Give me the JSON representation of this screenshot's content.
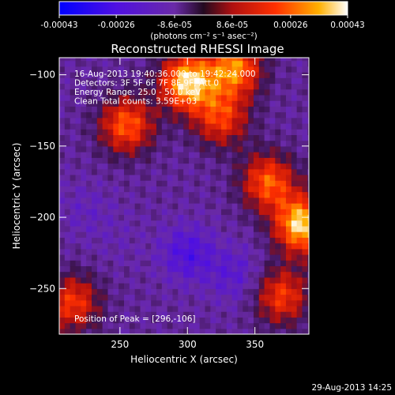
{
  "colorbar": {
    "tick_labels": [
      "-0.00043",
      "-0.00026",
      "-8.6e-05",
      "8.6e-05",
      "0.00026",
      "0.00043"
    ],
    "units_label": "(photons cm⁻² s⁻¹ asec⁻²)",
    "range": [
      -0.00043,
      0.00043
    ]
  },
  "chart_data": {
    "type": "heatmap",
    "title": "Reconstructed RHESSI Image",
    "xlabel": "Heliocentric X (arcsec)",
    "ylabel": "Heliocentric Y (arcsec)",
    "xlim": [
      205,
      390
    ],
    "ylim": [
      -282,
      -88
    ],
    "x_ticks": [
      250,
      300,
      350
    ],
    "y_ticks": [
      -100,
      -150,
      -200,
      -250
    ],
    "annotations": [
      "16-Aug-2013 19:40:36.000 to 19:42:24.000",
      "Detectors: 3F 5F 6F 7F 8F 9F, Att 0",
      "Energy Range: 25.0 - 50.0 keV",
      "Clean     Total counts: 3.59E+03"
    ],
    "peak_label": "Position of Peak = [296,-106]",
    "peak_position": [
      296,
      -106
    ],
    "bright_regions": [
      {
        "x": 300,
        "y": -105,
        "level": 0.0004
      },
      {
        "x": 335,
        "y": -95,
        "level": 0.0003
      },
      {
        "x": 385,
        "y": -205,
        "level": 0.0004
      },
      {
        "x": 360,
        "y": -175,
        "level": 0.00025
      },
      {
        "x": 255,
        "y": -135,
        "level": 0.00025
      },
      {
        "x": 215,
        "y": -260,
        "level": 0.0002
      },
      {
        "x": 325,
        "y": -130,
        "level": 0.0002
      },
      {
        "x": 370,
        "y": -255,
        "level": 0.0002
      }
    ],
    "dark_regions": [
      {
        "x": 300,
        "y": -225,
        "level": -0.00025
      },
      {
        "x": 335,
        "y": -240,
        "level": -0.0002
      },
      {
        "x": 225,
        "y": -195,
        "level": -0.00015
      },
      {
        "x": 250,
        "y": -215,
        "level": -0.00012
      }
    ]
  },
  "footer": {
    "timestamp": "29-Aug-2013 14:25"
  }
}
